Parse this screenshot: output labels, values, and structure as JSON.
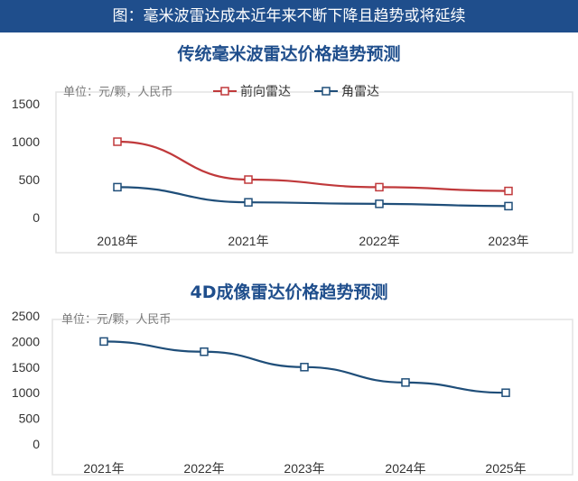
{
  "banner": {
    "title": "图：毫米波雷达成本近年来不断下降且趋势或将延续"
  },
  "colors": {
    "banner_bg": "#1f4e8c",
    "red_series": "#c0393b",
    "blue_series": "#1f4e79"
  },
  "chart_data": [
    {
      "type": "line",
      "title": "传统毫米波雷达价格趋势预测",
      "unit_note": "单位：元/颗，人民币",
      "categories": [
        "2018年",
        "2021年",
        "2022年",
        "2023年"
      ],
      "ylim": [
        0,
        1500
      ],
      "yticks": [
        "0",
        "500",
        "1000",
        "1500"
      ],
      "legend_position": "top",
      "grid": false,
      "series": [
        {
          "name": "前向雷达",
          "values": [
            1000,
            500,
            400,
            350
          ],
          "color": "#c0393b"
        },
        {
          "name": "角雷达",
          "values": [
            400,
            200,
            180,
            150
          ],
          "color": "#1f4e79"
        }
      ]
    },
    {
      "type": "line",
      "title": "4D成像雷达价格趋势预测",
      "unit_note": "单位：元/颗，人民币",
      "categories": [
        "2021年",
        "2022年",
        "2023年",
        "2024年",
        "2025年"
      ],
      "ylim": [
        0,
        2500
      ],
      "yticks": [
        "0",
        "500",
        "1000",
        "1500",
        "2000",
        "2500"
      ],
      "legend_position": "none",
      "grid": false,
      "series": [
        {
          "values": [
            2000,
            1800,
            1500,
            1200,
            1000
          ],
          "color": "#1f4e79"
        }
      ]
    }
  ]
}
